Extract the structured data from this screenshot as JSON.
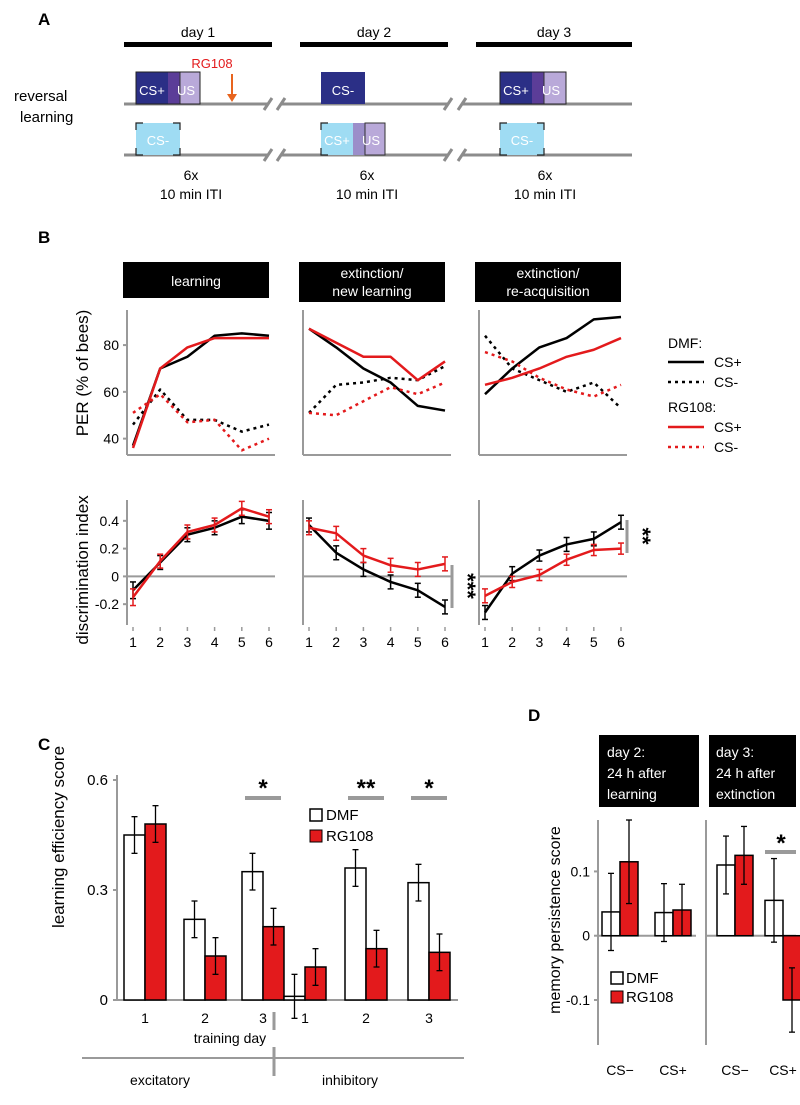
{
  "colors": {
    "dmf": "#000000",
    "rg108": "#e31a1c",
    "axis": "#9a9a9a",
    "cs_plus_box": "#2b2f86",
    "us_box": "#b9a9d9",
    "overlap_box": "#5b3d98",
    "cs_minus_box": "#9fdcf3",
    "timeline": "#8c8c8c"
  },
  "panel_a": {
    "label": "A",
    "day_labels": [
      "day 1",
      "day 2",
      "day 3"
    ],
    "row_label_line1": "reversal",
    "row_label_line2": "learning",
    "rg108_label": "RG108",
    "box_cs_plus": "CS+",
    "box_us": "US",
    "box_cs_minus": "CS-",
    "trials": "6x",
    "iti": "10 min ITI"
  },
  "panel_b": {
    "label": "B",
    "phase_titles": [
      [
        "learning"
      ],
      [
        "extinction/",
        "new learning"
      ],
      [
        "extinction/",
        "re-acquisition"
      ]
    ],
    "legend": {
      "dmf_title": "DMF:",
      "rg108_title": "RG108:",
      "cs_plus": "CS+",
      "cs_minus": "CS-"
    },
    "significance": [
      "***",
      "**"
    ]
  },
  "panel_c": {
    "label": "C",
    "training_day_label": "training day",
    "excitatory_label": "excitatory",
    "inhibitory_label": "inhibitory",
    "significance": [
      "*",
      "**",
      "*"
    ]
  },
  "panel_d": {
    "label": "D",
    "headers": [
      [
        "day 2:",
        "24 h after",
        "learning"
      ],
      [
        "day 3:",
        "24 h after",
        "extinction"
      ]
    ],
    "significance": [
      "*"
    ]
  },
  "chart_data": [
    {
      "type": "line",
      "title": "PER learning (day 1)",
      "ylabel": "PER (% of bees)",
      "x": [
        1,
        2,
        3,
        4,
        5,
        6
      ],
      "ylim": [
        33,
        95
      ],
      "yticks": [
        40,
        60,
        80
      ],
      "series": [
        {
          "name": "DMF CS+",
          "values": [
            37,
            70,
            75,
            84,
            85,
            84
          ]
        },
        {
          "name": "DMF CS-",
          "values": [
            46,
            61,
            48,
            48,
            43,
            46
          ]
        },
        {
          "name": "RG108 CS+",
          "values": [
            36,
            70,
            79,
            83,
            83,
            83
          ]
        },
        {
          "name": "RG108 CS-",
          "values": [
            51,
            59,
            47,
            48,
            35,
            40
          ]
        }
      ]
    },
    {
      "type": "line",
      "title": "PER extinction/new learning (day 2)",
      "ylabel": "PER (% of bees)",
      "x": [
        1,
        2,
        3,
        4,
        5,
        6
      ],
      "ylim": [
        33,
        95
      ],
      "series": [
        {
          "name": "DMF CS+",
          "values": [
            87,
            79,
            70,
            64,
            54,
            52
          ]
        },
        {
          "name": "DMF CS-",
          "values": [
            51,
            63,
            64,
            66,
            65,
            71
          ]
        },
        {
          "name": "RG108 CS+",
          "values": [
            87,
            81,
            75,
            75,
            65,
            73
          ]
        },
        {
          "name": "RG108 CS-",
          "values": [
            51,
            50,
            56,
            62,
            59,
            64
          ]
        }
      ]
    },
    {
      "type": "line",
      "title": "PER extinction/re-acquisition (day 3)",
      "ylabel": "PER (% of bees)",
      "x": [
        1,
        2,
        3,
        4,
        5,
        6
      ],
      "ylim": [
        33,
        95
      ],
      "series": [
        {
          "name": "DMF CS+",
          "values": [
            59,
            70,
            79,
            83,
            91,
            92
          ]
        },
        {
          "name": "DMF CS-",
          "values": [
            84,
            70,
            65,
            60,
            64,
            53
          ]
        },
        {
          "name": "RG108 CS+",
          "values": [
            63,
            66,
            70,
            75,
            78,
            83
          ]
        },
        {
          "name": "RG108 CS-",
          "values": [
            77,
            73,
            66,
            61,
            58,
            63
          ]
        }
      ]
    },
    {
      "type": "line",
      "title": "discrimination index day 1",
      "ylabel": "discrimination index",
      "x": [
        1,
        2,
        3,
        4,
        5,
        6
      ],
      "ylim": [
        -0.35,
        0.55
      ],
      "yticks": [
        -0.2,
        0,
        0.2,
        0.4
      ],
      "xticks": [
        "1",
        "2",
        "3",
        "4",
        "5",
        "6"
      ],
      "series": [
        {
          "name": "DMF",
          "values": [
            -0.1,
            0.1,
            0.3,
            0.35,
            0.43,
            0.4
          ],
          "errors": [
            0.06,
            0.05,
            0.05,
            0.05,
            0.05,
            0.06
          ]
        },
        {
          "name": "RG108",
          "values": [
            -0.15,
            0.11,
            0.32,
            0.37,
            0.49,
            0.43
          ],
          "errors": [
            0.06,
            0.05,
            0.05,
            0.05,
            0.05,
            0.05
          ]
        }
      ]
    },
    {
      "type": "line",
      "title": "discrimination index day 2",
      "ylabel": "discrimination index",
      "x": [
        1,
        2,
        3,
        4,
        5,
        6
      ],
      "ylim": [
        -0.35,
        0.55
      ],
      "xticks": [
        "1",
        "2",
        "3",
        "4",
        "5",
        "6"
      ],
      "series": [
        {
          "name": "DMF",
          "values": [
            0.37,
            0.17,
            0.05,
            -0.04,
            -0.1,
            -0.22
          ],
          "errors": [
            0.05,
            0.05,
            0.05,
            0.05,
            0.05,
            0.05
          ]
        },
        {
          "name": "RG108",
          "values": [
            0.35,
            0.31,
            0.15,
            0.08,
            0.05,
            0.09
          ],
          "errors": [
            0.05,
            0.05,
            0.05,
            0.05,
            0.05,
            0.05
          ]
        }
      ]
    },
    {
      "type": "line",
      "title": "discrimination index day 3",
      "ylabel": "discrimination index",
      "x": [
        1,
        2,
        3,
        4,
        5,
        6
      ],
      "ylim": [
        -0.35,
        0.55
      ],
      "xticks": [
        "1",
        "2",
        "3",
        "4",
        "5",
        "6"
      ],
      "series": [
        {
          "name": "DMF",
          "values": [
            -0.26,
            0.02,
            0.15,
            0.23,
            0.27,
            0.39
          ],
          "errors": [
            0.05,
            0.05,
            0.04,
            0.05,
            0.05,
            0.05
          ]
        },
        {
          "name": "RG108",
          "values": [
            -0.14,
            -0.04,
            0.01,
            0.12,
            0.19,
            0.2
          ],
          "errors": [
            0.05,
            0.04,
            0.04,
            0.04,
            0.04,
            0.04
          ]
        }
      ]
    },
    {
      "type": "bar",
      "title": "learning efficiency",
      "ylabel": "learning efficiency score",
      "xlabel": "training day",
      "categories": [
        "1",
        "2",
        "3",
        "1",
        "2",
        "3"
      ],
      "groups": [
        "excitatory",
        "excitatory",
        "excitatory",
        "inhibitory",
        "inhibitory",
        "inhibitory"
      ],
      "ylim": [
        0,
        0.6
      ],
      "yticks": [
        0,
        0.3,
        0.6
      ],
      "series": [
        {
          "name": "DMF",
          "values": [
            0.45,
            0.22,
            0.35,
            0.01,
            0.36,
            0.32
          ],
          "errors": [
            0.05,
            0.05,
            0.05,
            0.06,
            0.05,
            0.05
          ]
        },
        {
          "name": "RG108",
          "values": [
            0.48,
            0.12,
            0.2,
            0.09,
            0.14,
            0.13
          ],
          "errors": [
            0.05,
            0.05,
            0.05,
            0.05,
            0.05,
            0.05
          ]
        }
      ]
    },
    {
      "type": "bar",
      "title": "memory persistence",
      "ylabel": "memory persistence score",
      "categories": [
        "CS−",
        "CS+",
        "CS−",
        "CS+"
      ],
      "groups": [
        "day 2",
        "day 2",
        "day 3",
        "day 3"
      ],
      "ylim": [
        -0.17,
        0.18
      ],
      "yticks": [
        -0.1,
        0,
        0.1
      ],
      "series": [
        {
          "name": "DMF",
          "values": [
            0.037,
            0.036,
            0.11,
            0.055
          ],
          "errors": [
            0.06,
            0.045,
            0.045,
            0.065
          ]
        },
        {
          "name": "RG108",
          "values": [
            0.115,
            0.04,
            0.125,
            -0.1
          ],
          "errors": [
            0.065,
            0.04,
            0.045,
            0.05
          ]
        }
      ]
    }
  ]
}
